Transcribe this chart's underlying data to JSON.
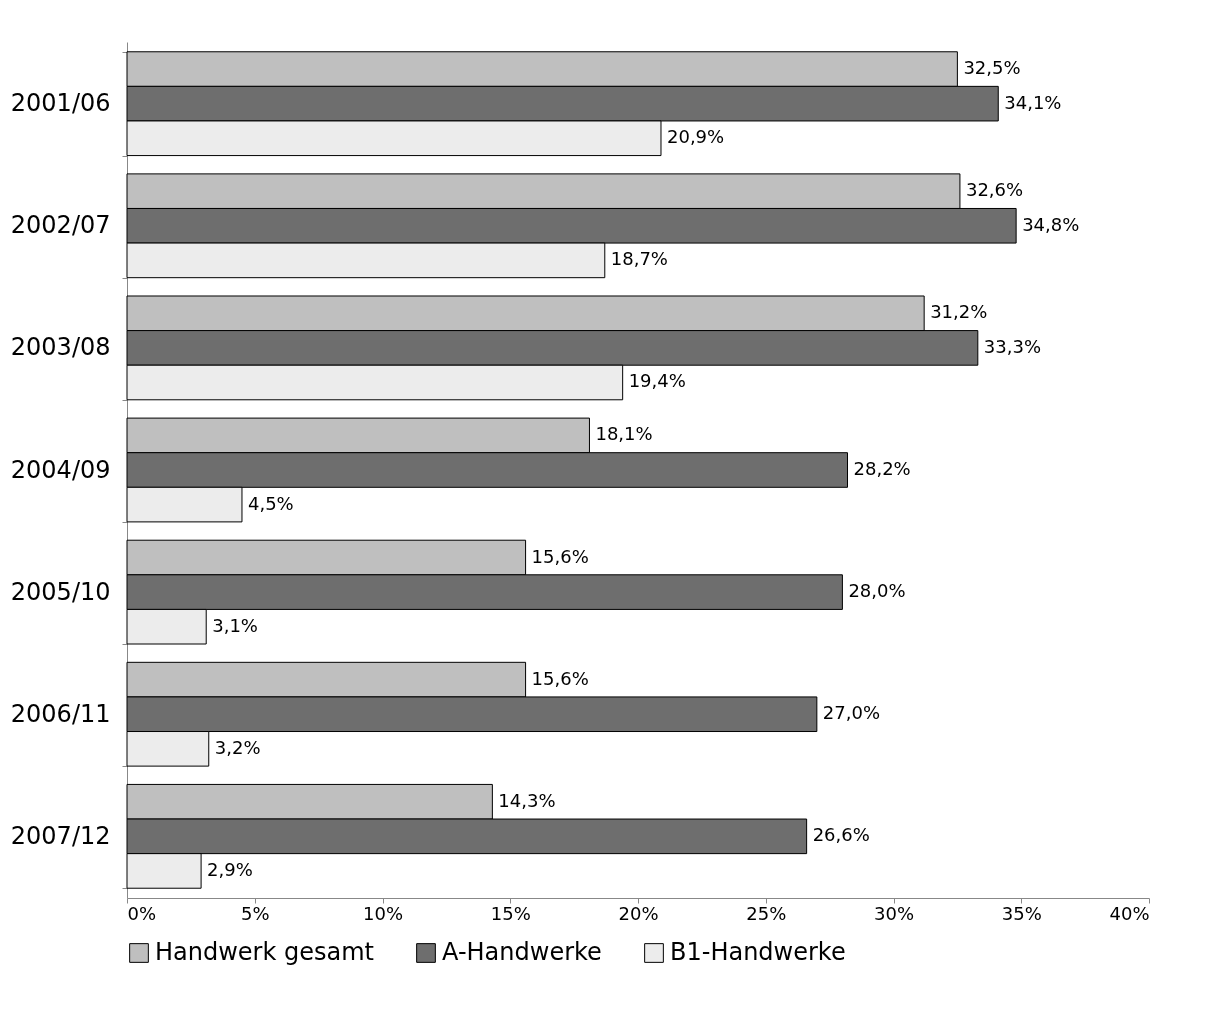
{
  "chart_data": {
    "type": "bar",
    "orientation": "horizontal",
    "categories": [
      "2001/06",
      "2002/07",
      "2003/08",
      "2004/09",
      "2005/10",
      "2006/11",
      "2007/12"
    ],
    "series": [
      {
        "name": "Handwerk gesamt",
        "color": "#bfbfbf",
        "values": [
          32.5,
          32.6,
          31.2,
          18.1,
          15.6,
          15.6,
          14.3
        ],
        "value_labels": [
          "32,5%",
          "32,6%",
          "31,2%",
          "18,1%",
          "15,6%",
          "15,6%",
          "14,3%"
        ]
      },
      {
        "name": "A-Handwerke",
        "color": "#6e6e6e",
        "values": [
          34.1,
          34.8,
          33.3,
          28.2,
          28.0,
          27.0,
          26.6
        ],
        "value_labels": [
          "34,1%",
          "34,8%",
          "33,3%",
          "28,2%",
          "28,0%",
          "27,0%",
          "26,6%"
        ]
      },
      {
        "name": "B1-Handwerke",
        "color": "#ececec",
        "values": [
          20.9,
          18.7,
          19.4,
          4.5,
          3.1,
          3.2,
          2.9
        ],
        "value_labels": [
          "20,9%",
          "18,7%",
          "19,4%",
          "4,5%",
          "3,1%",
          "3,2%",
          "2,9%"
        ]
      }
    ],
    "xlim": [
      0,
      40
    ],
    "xticks": [
      {
        "value": 0,
        "label": "0%"
      },
      {
        "value": 5,
        "label": "5%"
      },
      {
        "value": 10,
        "label": "10%"
      },
      {
        "value": 15,
        "label": "15%"
      },
      {
        "value": 20,
        "label": "20%"
      },
      {
        "value": 25,
        "label": "25%"
      },
      {
        "value": 30,
        "label": "30%"
      },
      {
        "value": 35,
        "label": "35%"
      },
      {
        "value": 40,
        "label": "40%"
      }
    ],
    "grid": false,
    "legend": "bottom"
  }
}
